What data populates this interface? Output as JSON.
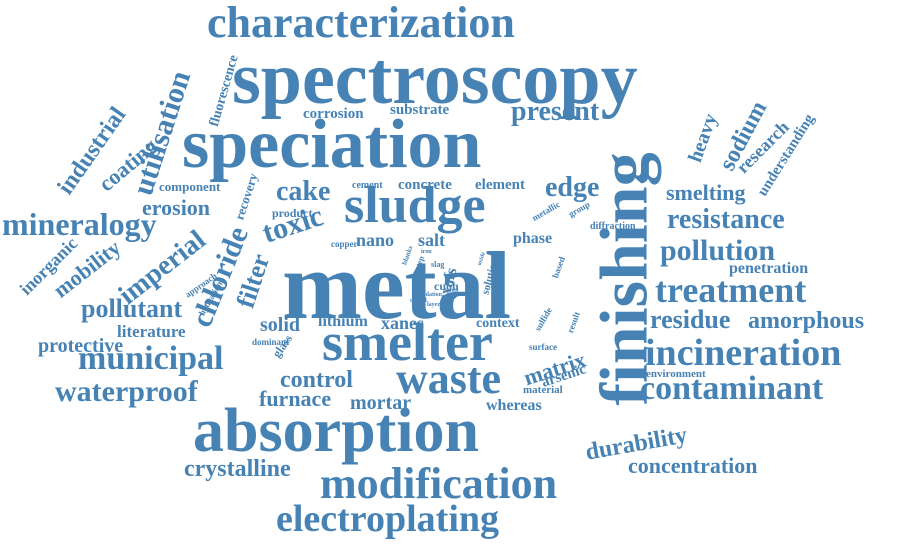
{
  "color": "#4682b4",
  "words": [
    "metal",
    "spectroscopy",
    "speciation",
    "finishing",
    "absorption",
    "smelter",
    "sludge",
    "characterization",
    "modification",
    "electroplating",
    "waste",
    "incineration",
    "contaminant",
    "treatment",
    "municipal",
    "mineralogy",
    "chloride",
    "toxic",
    "imperial",
    "waterproof",
    "pollution",
    "resistance",
    "utilisation",
    "filter",
    "residue",
    "amorphous",
    "concentration",
    "durability",
    "crystalline",
    "control",
    "furnace",
    "mortar",
    "present",
    "cake",
    "edge",
    "industrial",
    "coating",
    "pollutant",
    "mobility",
    "erosion",
    "inorganic",
    "protective",
    "literature",
    "solid",
    "lithium",
    "xanes",
    "nano",
    "salt",
    "phase",
    "smelting",
    "sodium",
    "heavy",
    "research",
    "understanding",
    "penetration",
    "matrix",
    "arsenic",
    "whereas",
    "context",
    "environment",
    "corrosion",
    "substrate",
    "component",
    "recovery",
    "product",
    "cement",
    "concrete",
    "element",
    "fluorescence",
    "exafs",
    "copper",
    "glass",
    "dominant",
    "approach",
    "hydration",
    "diffraction",
    "metallic",
    "group",
    "based",
    "material",
    "surface",
    "result",
    "sulfide",
    "solution",
    "cuoh",
    "slag",
    "blanks",
    "clob",
    "step",
    "iron",
    "oxide",
    "oxidation",
    "sulfur",
    "coated",
    "layer",
    "tests"
  ]
}
